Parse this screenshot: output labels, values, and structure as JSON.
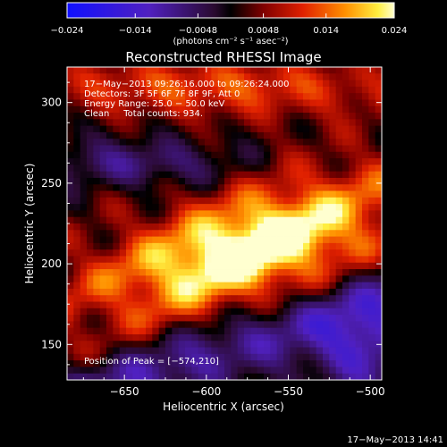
{
  "chart_data": {
    "type": "heatmap",
    "title": "Reconstructed RHESSI Image",
    "xlabel": "Heliocentric X (arcsec)",
    "ylabel": "Heliocentric Y (arcsec)",
    "xlim": [
      -685,
      -493
    ],
    "ylim": [
      128,
      322
    ],
    "x_ticks": [
      -650,
      -600,
      -550,
      -500
    ],
    "x_tick_labels": [
      "−650",
      "−600",
      "−550",
      "−500"
    ],
    "y_ticks": [
      150,
      200,
      250,
      300
    ],
    "y_tick_labels": [
      "150",
      "200",
      "250",
      "300"
    ],
    "colorbar": {
      "range": [
        -0.024,
        0.024
      ],
      "ticks": [
        -0.024,
        -0.014,
        -0.0048,
        0.0048,
        0.014,
        0.024
      ],
      "tick_labels": [
        "−0.024",
        "−0.014",
        "−0.0048",
        "0.0048",
        "0.014",
        "0.024"
      ],
      "units_line": "(photons cm⁻² s⁻¹ asec⁻²)"
    },
    "annotations": [
      "17−May−2013 09:26:16.000 to 09:26:24.000",
      "Detectors: 3F 5F 6F 7F 8F 9F, Att 0",
      "Energy Range: 25.0 − 50.0 keV",
      "Clean     Total counts: 934."
    ],
    "peak_label": "Position of Peak = [−574,210]",
    "peak": {
      "x": -574,
      "y": 210,
      "value": 0.024
    },
    "grid": false,
    "footer": "17−May−2013 14:41"
  }
}
